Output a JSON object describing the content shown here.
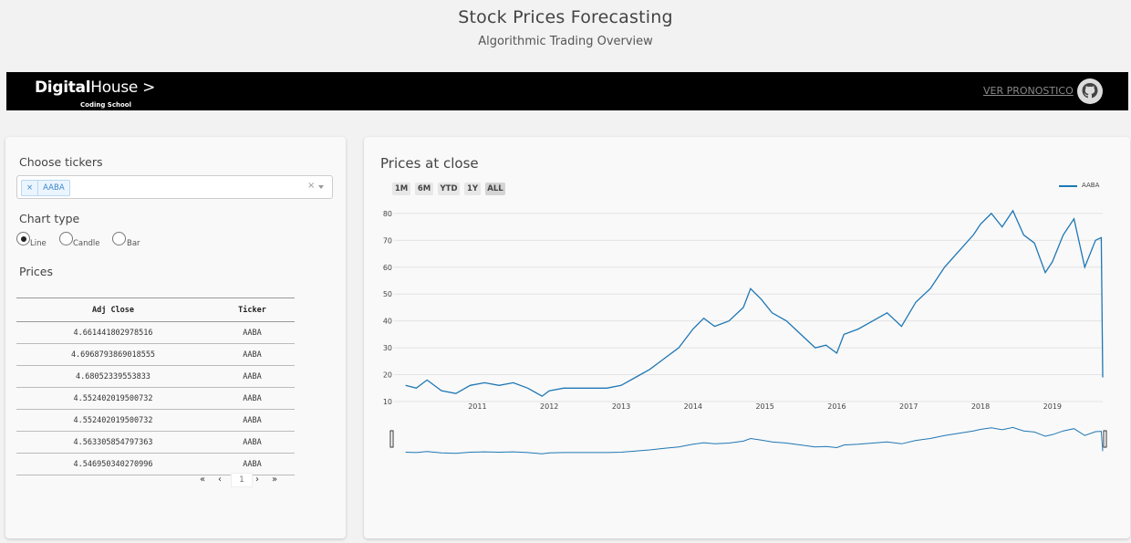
{
  "header": {
    "title": "Stock Prices Forecasting",
    "subtitle": "Algorithmic Trading Overview"
  },
  "navbar": {
    "logo_bold": "Digital",
    "logo_rest": "House >",
    "logo_sub": "Coding School",
    "link": "VER PRONOSTICO",
    "github_icon": "github-icon"
  },
  "controls": {
    "tickers_label": "Choose tickers",
    "selected_ticker": "AABA",
    "tag_remove": "×",
    "clear_symbol": "×",
    "chart_type_label": "Chart type",
    "chart_types": [
      {
        "label": "Line",
        "checked": true
      },
      {
        "label": "Candle",
        "checked": false
      },
      {
        "label": "Bar",
        "checked": false
      }
    ],
    "prices_label": "Prices"
  },
  "table": {
    "headers": [
      "Adj Close",
      "Ticker"
    ],
    "rows": [
      [
        "4.661441802978516",
        "AABA"
      ],
      [
        "4.6968793869018555",
        "AABA"
      ],
      [
        "4.68052339553833",
        "AABA"
      ],
      [
        "4.552402019500732",
        "AABA"
      ],
      [
        "4.552402019500732",
        "AABA"
      ],
      [
        "4.563305854797363",
        "AABA"
      ],
      [
        "4.546950340270996",
        "AABA"
      ]
    ]
  },
  "pagination": {
    "first": "«",
    "prev": "‹",
    "page": "1",
    "next": "›",
    "last": "»"
  },
  "chart": {
    "title": "Prices at close",
    "range_buttons": [
      {
        "label": "1M",
        "active": false
      },
      {
        "label": "6M",
        "active": false
      },
      {
        "label": "YTD",
        "active": false
      },
      {
        "label": "1Y",
        "active": false
      },
      {
        "label": "ALL",
        "active": true
      }
    ]
  },
  "chart_data": {
    "type": "line",
    "series": [
      {
        "name": "AABA",
        "color": "#1f77b4"
      }
    ],
    "x": [
      2010.0,
      2010.15,
      2010.3,
      2010.5,
      2010.7,
      2010.9,
      2011.1,
      2011.3,
      2011.5,
      2011.7,
      2011.9,
      2012.0,
      2012.2,
      2012.4,
      2012.6,
      2012.8,
      2013.0,
      2013.2,
      2013.4,
      2013.6,
      2013.8,
      2014.0,
      2014.15,
      2014.3,
      2014.5,
      2014.7,
      2014.8,
      2014.95,
      2015.1,
      2015.3,
      2015.5,
      2015.7,
      2015.85,
      2016.0,
      2016.1,
      2016.3,
      2016.5,
      2016.7,
      2016.9,
      2017.1,
      2017.3,
      2017.5,
      2017.7,
      2017.9,
      2018.0,
      2018.15,
      2018.3,
      2018.45,
      2018.6,
      2018.75,
      2018.9,
      2019.0,
      2019.15,
      2019.3,
      2019.45,
      2019.6,
      2019.68,
      2019.7
    ],
    "values": [
      16,
      15,
      18,
      14,
      13,
      16,
      17,
      16,
      17,
      15,
      12,
      14,
      15,
      15,
      15,
      15,
      16,
      19,
      22,
      26,
      30,
      37,
      41,
      38,
      40,
      45,
      52,
      48,
      43,
      40,
      35,
      30,
      31,
      28,
      35,
      37,
      40,
      43,
      38,
      47,
      52,
      60,
      66,
      72,
      76,
      80,
      75,
      81,
      72,
      69,
      58,
      62,
      72,
      78,
      60,
      70,
      71,
      19
    ],
    "x_ticks": [
      "2011",
      "2012",
      "2013",
      "2014",
      "2015",
      "2016",
      "2017",
      "2018",
      "2019"
    ],
    "x_tick_values": [
      2011,
      2012,
      2013,
      2014,
      2015,
      2016,
      2017,
      2018,
      2019
    ],
    "y_ticks": [
      10,
      20,
      30,
      40,
      50,
      60,
      70,
      80
    ],
    "xlim": [
      2009.84,
      2019.7
    ],
    "ylim": [
      10,
      82
    ],
    "grid": true,
    "legend": "top-right",
    "range_slider": true
  }
}
